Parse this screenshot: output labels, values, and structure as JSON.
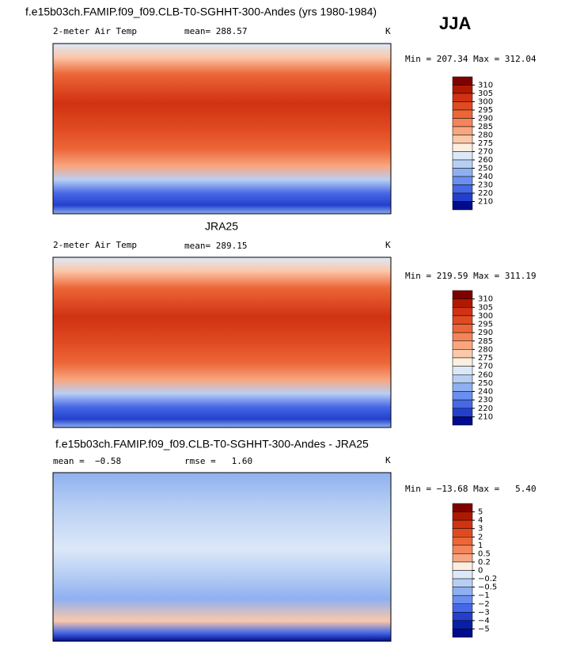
{
  "figure_title": "f.e15b03ch.FAMIP.f09_f09.CLB-T0-SGHHT-300-Andes (yrs 1980-1984)",
  "season": "JJA",
  "panels": [
    {
      "variable": "2-meter Air Temp",
      "mean": "mean= 288.57",
      "units": "K",
      "range": "Min = 207.34 Max = 312.04",
      "colorbar": {
        "labels": [
          310,
          305,
          300,
          295,
          290,
          285,
          280,
          275,
          270,
          260,
          250,
          240,
          230,
          220,
          210
        ],
        "colors": [
          "#800000",
          "#b01800",
          "#d03212",
          "#e04a22",
          "#ec6638",
          "#f4845a",
          "#f8a680",
          "#fbc8aa",
          "#fdeee0",
          "#dce8f8",
          "#b8cff4",
          "#8fb0f0",
          "#6a8ff0",
          "#4668e6",
          "#2340cc",
          "#000c8c"
        ]
      }
    },
    {
      "title": "JRA25",
      "variable": "2-meter Air Temp",
      "mean": "mean= 289.15",
      "units": "K",
      "range": "Min = 219.59 Max = 311.19",
      "colorbar": {
        "labels": [
          310,
          305,
          300,
          295,
          290,
          285,
          280,
          275,
          270,
          260,
          250,
          240,
          230,
          220,
          210
        ],
        "colors": [
          "#800000",
          "#b01800",
          "#d03212",
          "#e04a22",
          "#ec6638",
          "#f4845a",
          "#f8a680",
          "#fbc8aa",
          "#fdeee0",
          "#dce8f8",
          "#b8cff4",
          "#8fb0f0",
          "#6a8ff0",
          "#4668e6",
          "#2340cc",
          "#000c8c"
        ]
      }
    },
    {
      "title": "f.e15b03ch.FAMIP.f09_f09.CLB-T0-SGHHT-300-Andes - JRA25",
      "mean": "mean =  −0.58",
      "rmse": "rmse =   1.60",
      "units": "K",
      "range": "Min = −13.68 Max =   5.40",
      "colorbar": {
        "labels": [
          "5",
          "4",
          "3",
          "2",
          "1",
          "0.5",
          "0.2",
          "0",
          "−0.2",
          "−0.5",
          "−1",
          "−2",
          "−3",
          "−4",
          "−5"
        ],
        "colors": [
          "#800000",
          "#b01800",
          "#d03212",
          "#e04a22",
          "#ec6638",
          "#f4845a",
          "#f8a680",
          "#fdeee0",
          "#dce8f8",
          "#b8cff4",
          "#8fb0f0",
          "#6a8ff0",
          "#4668e6",
          "#2340cc",
          "#0a1fa8",
          "#000c8c"
        ]
      }
    }
  ]
}
